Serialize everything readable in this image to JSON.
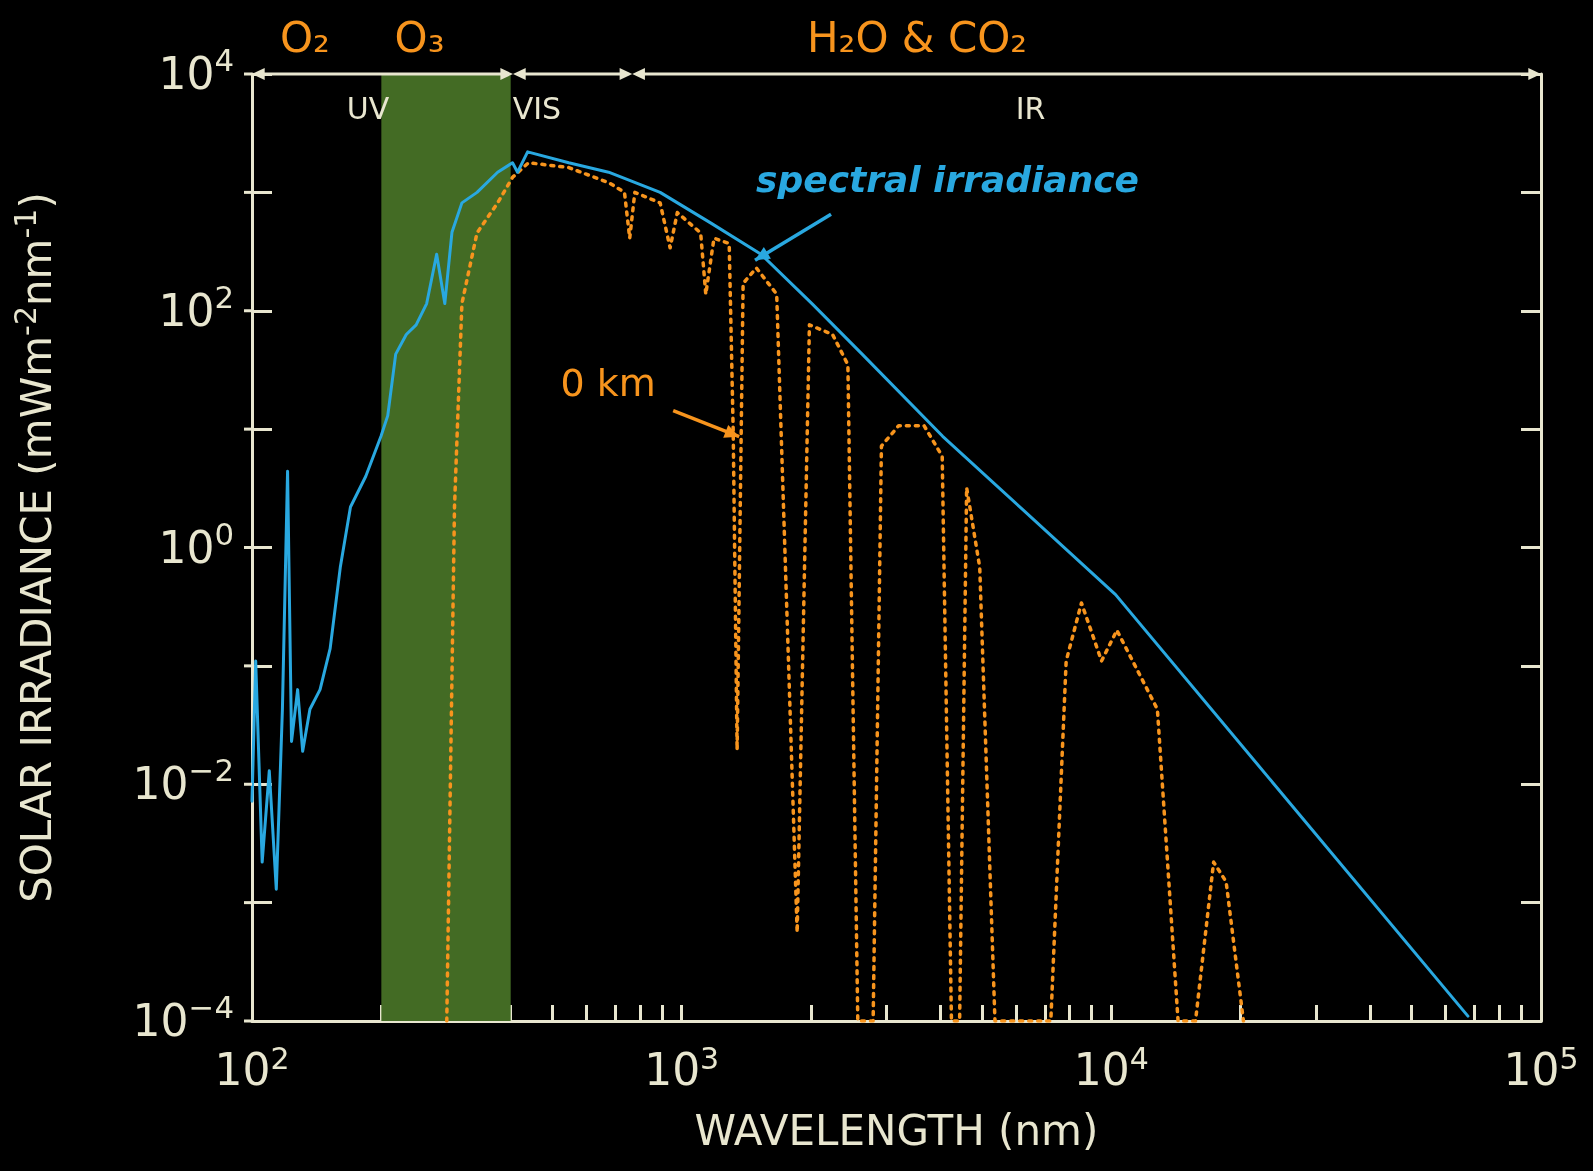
{
  "chart_data": {
    "type": "line",
    "xlabel": "WAVELENGTH (nm)",
    "ylabel": "SOLAR IRRADIANCE (mWm$^{-2}$nm$^{-1}$)",
    "log": "xy",
    "xlim": [
      100,
      100000
    ],
    "ylim": [
      0.0001,
      10000
    ],
    "xticks": [
      {
        "value": 100,
        "label": "10$^{2}$"
      },
      {
        "value": 200,
        "label": null
      },
      {
        "value": 300,
        "label": null
      },
      {
        "value": 400,
        "label": null
      },
      {
        "value": 500,
        "label": null
      },
      {
        "value": 600,
        "label": null
      },
      {
        "value": 700,
        "label": null
      },
      {
        "value": 800,
        "label": null
      },
      {
        "value": 900,
        "label": null
      },
      {
        "value": 1000,
        "label": "10$^{3}$"
      },
      {
        "value": 2000,
        "label": null
      },
      {
        "value": 3000,
        "label": null
      },
      {
        "value": 4000,
        "label": null
      },
      {
        "value": 5000,
        "label": null
      },
      {
        "value": 6000,
        "label": null
      },
      {
        "value": 7000,
        "label": null
      },
      {
        "value": 8000,
        "label": null
      },
      {
        "value": 9000,
        "label": null
      },
      {
        "value": 10000,
        "label": "10$^{4}$"
      },
      {
        "value": 20000,
        "label": null
      },
      {
        "value": 30000,
        "label": null
      },
      {
        "value": 40000,
        "label": null
      },
      {
        "value": 50000,
        "label": null
      },
      {
        "value": 60000,
        "label": null
      },
      {
        "value": 70000,
        "label": null
      },
      {
        "value": 80000,
        "label": null
      },
      {
        "value": 90000,
        "label": null
      },
      {
        "value": 100000,
        "label": "10$^{5}$"
      }
    ],
    "yticks": [
      {
        "value": 0.0001,
        "label": "10$^{−4}$"
      },
      {
        "value": 0.001,
        "label": null
      },
      {
        "value": 0.01,
        "label": "10$^{−2}$"
      },
      {
        "value": 0.1,
        "label": null
      },
      {
        "value": 1,
        "label": "10$^{0}$"
      },
      {
        "value": 10,
        "label": null
      },
      {
        "value": 100,
        "label": "10$^{2}$"
      },
      {
        "value": 1000,
        "label": null
      },
      {
        "value": 10000,
        "label": "10$^{4}$"
      }
    ],
    "series": [
      {
        "name": "spectral irradiance",
        "color": "#29a8e0",
        "line_style": "solid",
        "x": [
          100,
          102,
          105.6,
          109.7,
          113.9,
          117.7,
          121,
          123.6,
          127.7,
          131.2,
          136.4,
          144,
          152,
          160.5,
          169.5,
          184,
          199.6,
          207,
          216,
          228.6,
          241,
          255,
          269,
          281,
          292,
          308,
          334,
          373,
          404,
          415,
          438,
          546,
          676,
          891,
          1170,
          1530,
          2010,
          2630,
          4050,
          10230,
          67600
        ],
        "values": [
          0.0072,
          0.11,
          0.0022,
          0.013,
          0.0013,
          0.043,
          4.4,
          0.023,
          0.063,
          0.019,
          0.043,
          0.063,
          0.14,
          0.68,
          2.2,
          4,
          8.7,
          13,
          43,
          63,
          76,
          115,
          300,
          115,
          460,
          815,
          1000,
          1480,
          1780,
          1480,
          2200,
          1780,
          1480,
          1000,
          550,
          300,
          115,
          43,
          8.7,
          0.4,
          0.00011
        ]
      },
      {
        "name": "0 km",
        "color": "#f7941d",
        "line_style": "dotted",
        "x": [
          284,
          296,
          308,
          334,
          373,
          404,
          440,
          546,
          679,
          736,
          757,
          778,
          891,
          940,
          977,
          1107,
          1138,
          1189,
          1290,
          1318,
          1346,
          1390,
          1492,
          1664,
          1857,
          1983,
          2245,
          2437,
          2570,
          2790,
          2917,
          3200,
          3665,
          4040,
          4245,
          4435,
          4605,
          4940,
          5360,
          7230,
          7850,
          8520,
          9490,
          10300,
          12800,
          14300,
          15700,
          17300,
          18500,
          20300
        ],
        "values": [
          0.0001,
          2.2,
          115,
          455,
          815,
          1340,
          1780,
          1620,
          1200,
          1000,
          410,
          1000,
          815,
          340,
          675,
          455,
          138,
          410,
          370,
          9.7,
          0.0195,
          170,
          230,
          138,
          0.00056,
          76,
          63,
          35,
          0.0001,
          0.0001,
          7.2,
          10.7,
          10.7,
          5.9,
          0.0001,
          0.0001,
          3.2,
          0.68,
          0.0001,
          0.0001,
          0.11,
          0.34,
          0.11,
          0.2,
          0.043,
          0.0001,
          0.0001,
          0.0022,
          0.0015,
          0.0001
        ]
      }
    ],
    "bands": [
      {
        "axis": "x",
        "from": 200,
        "to": 400,
        "color": "#436b24"
      }
    ],
    "annotations": [
      "O₂",
      "O₃",
      "H₂O   &   CO₂",
      "UV",
      "VIS",
      "IR"
    ]
  }
}
